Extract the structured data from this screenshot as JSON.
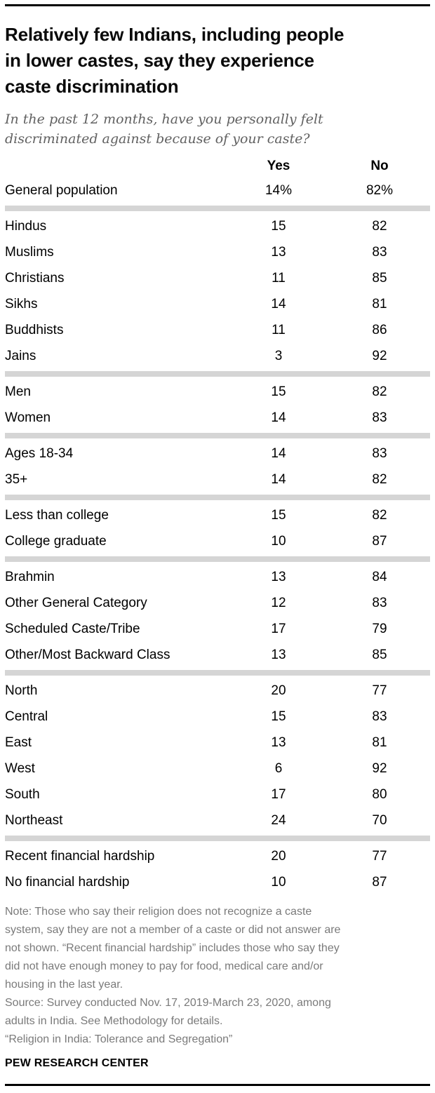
{
  "chart_data": {
    "type": "table",
    "title": "Relatively few Indians, including people\nin lower castes, say they experience\ncaste discrimination",
    "subtitle": "In the past 12 months, have you personally felt\ndiscriminated against because of your caste?",
    "columns": [
      "Yes",
      "No"
    ],
    "groups": [
      {
        "rows": [
          {
            "label": "General population",
            "yes": "14%",
            "no": "82%"
          }
        ]
      },
      {
        "rows": [
          {
            "label": "Hindus",
            "yes": "15",
            "no": "82"
          },
          {
            "label": "Muslims",
            "yes": "13",
            "no": "83"
          },
          {
            "label": "Christians",
            "yes": "11",
            "no": "85"
          },
          {
            "label": "Sikhs",
            "yes": "14",
            "no": "81"
          },
          {
            "label": "Buddhists",
            "yes": "11",
            "no": "86"
          },
          {
            "label": "Jains",
            "yes": "3",
            "no": "92"
          }
        ]
      },
      {
        "rows": [
          {
            "label": "Men",
            "yes": "15",
            "no": "82"
          },
          {
            "label": "Women",
            "yes": "14",
            "no": "83"
          }
        ]
      },
      {
        "rows": [
          {
            "label": "Ages 18-34",
            "yes": "14",
            "no": "83"
          },
          {
            "label": "35+",
            "yes": "14",
            "no": "82"
          }
        ]
      },
      {
        "rows": [
          {
            "label": "Less than college",
            "yes": "15",
            "no": "82"
          },
          {
            "label": "College graduate",
            "yes": "10",
            "no": "87"
          }
        ]
      },
      {
        "rows": [
          {
            "label": "Brahmin",
            "yes": "13",
            "no": "84"
          },
          {
            "label": "Other General Category",
            "yes": "12",
            "no": "83"
          },
          {
            "label": "Scheduled Caste/Tribe",
            "yes": "17",
            "no": "79"
          },
          {
            "label": "Other/Most Backward Class",
            "yes": "13",
            "no": "85"
          }
        ]
      },
      {
        "rows": [
          {
            "label": "North",
            "yes": "20",
            "no": "77"
          },
          {
            "label": "Central",
            "yes": "15",
            "no": "83"
          },
          {
            "label": "East",
            "yes": "13",
            "no": "81"
          },
          {
            "label": "West",
            "yes": "6",
            "no": "92"
          },
          {
            "label": "South",
            "yes": "17",
            "no": "80"
          },
          {
            "label": "Northeast",
            "yes": "24",
            "no": "70"
          }
        ]
      },
      {
        "rows": [
          {
            "label": "Recent financial hardship",
            "yes": "20",
            "no": "77"
          },
          {
            "label": "No financial hardship",
            "yes": "10",
            "no": "87"
          }
        ]
      }
    ]
  },
  "footer": {
    "note": "Note: Those who say their religion does not recognize a caste\nsystem, say they are not a member of a caste or did not answer are\nnot shown. “Recent financial hardship” includes those who say they\ndid not have enough money to pay for food, medical care and/or\nhousing in the last year.",
    "source": "Source: Survey conducted Nov. 17, 2019-March 23, 2020, among\nadults in India. See Methodology for details.",
    "report": "“Religion in India: Tolerance and Segregation”",
    "brand": "PEW RESEARCH CENTER"
  },
  "colors": {
    "divider": "#d5d5d5",
    "subtitle_gray": "#616161",
    "note_gray": "#7a7a7a",
    "text_black": "#000000"
  }
}
